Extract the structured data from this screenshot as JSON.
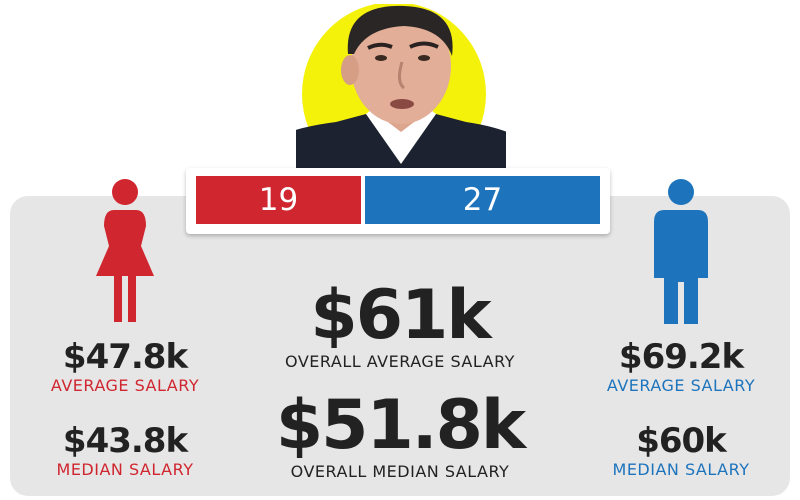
{
  "counts": {
    "women": "19",
    "men": "27"
  },
  "overall": {
    "average_value": "$61k",
    "average_label": "OVERALL AVERAGE SALARY",
    "median_value": "$51.8k",
    "median_label": "OVERALL MEDIAN SALARY"
  },
  "women": {
    "average_value": "$47.8k",
    "average_label": "AVERAGE SALARY",
    "median_value": "$43.8k",
    "median_label": "MEDIAN SALARY"
  },
  "men": {
    "average_value": "$69.2k",
    "average_label": "AVERAGE SALARY",
    "median_value": "$60k",
    "median_label": "MEDIAN SALARY"
  },
  "colors": {
    "women": "#d0262f",
    "men": "#1d74bd",
    "highlight": "#f4f20a",
    "panel": "#e6e6e6"
  }
}
